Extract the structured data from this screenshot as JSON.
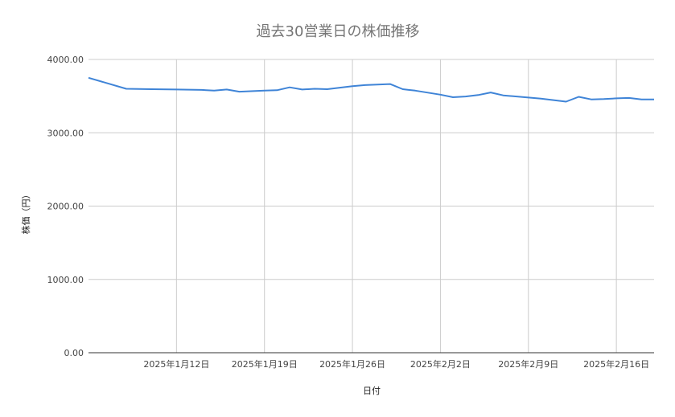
{
  "chart_data": {
    "type": "line",
    "title": "過去30営業日の株価推移",
    "xlabel": "日付",
    "ylabel": "株価（円）",
    "ylim": [
      0,
      4000
    ],
    "yticks": [
      "0.00",
      "1000.00",
      "2000.00",
      "3000.00",
      "4000.00"
    ],
    "xlim": [
      "2025-01-05",
      "2025-02-19"
    ],
    "xticks": [
      {
        "date": "2025-01-12",
        "label": "2025年1月12日"
      },
      {
        "date": "2025-01-19",
        "label": "2025年1月19日"
      },
      {
        "date": "2025-01-26",
        "label": "2025年1月26日"
      },
      {
        "date": "2025-02-02",
        "label": "2025年2月2日"
      },
      {
        "date": "2025-02-09",
        "label": "2025年2月9日"
      },
      {
        "date": "2025-02-16",
        "label": "2025年2月16日"
      }
    ],
    "grid": true,
    "series": [
      {
        "color": "#3f84d7",
        "points": [
          {
            "x": "2025-01-05",
            "y": 3750
          },
          {
            "x": "2025-01-08",
            "y": 3600
          },
          {
            "x": "2025-01-10",
            "y": 3595
          },
          {
            "x": "2025-01-12",
            "y": 3590
          },
          {
            "x": "2025-01-14",
            "y": 3585
          },
          {
            "x": "2025-01-15",
            "y": 3575
          },
          {
            "x": "2025-01-16",
            "y": 3590
          },
          {
            "x": "2025-01-17",
            "y": 3560
          },
          {
            "x": "2025-01-19",
            "y": 3575
          },
          {
            "x": "2025-01-20",
            "y": 3580
          },
          {
            "x": "2025-01-21",
            "y": 3620
          },
          {
            "x": "2025-01-22",
            "y": 3590
          },
          {
            "x": "2025-01-23",
            "y": 3600
          },
          {
            "x": "2025-01-24",
            "y": 3595
          },
          {
            "x": "2025-01-26",
            "y": 3635
          },
          {
            "x": "2025-01-27",
            "y": 3650
          },
          {
            "x": "2025-01-29",
            "y": 3665
          },
          {
            "x": "2025-01-30",
            "y": 3595
          },
          {
            "x": "2025-01-31",
            "y": 3575
          },
          {
            "x": "2025-02-02",
            "y": 3520
          },
          {
            "x": "2025-02-03",
            "y": 3485
          },
          {
            "x": "2025-02-04",
            "y": 3495
          },
          {
            "x": "2025-02-05",
            "y": 3515
          },
          {
            "x": "2025-02-06",
            "y": 3550
          },
          {
            "x": "2025-02-07",
            "y": 3510
          },
          {
            "x": "2025-02-09",
            "y": 3480
          },
          {
            "x": "2025-02-10",
            "y": 3465
          },
          {
            "x": "2025-02-12",
            "y": 3425
          },
          {
            "x": "2025-02-13",
            "y": 3490
          },
          {
            "x": "2025-02-14",
            "y": 3455
          },
          {
            "x": "2025-02-15",
            "y": 3460
          },
          {
            "x": "2025-02-16",
            "y": 3470
          },
          {
            "x": "2025-02-17",
            "y": 3475
          },
          {
            "x": "2025-02-18",
            "y": 3455
          },
          {
            "x": "2025-02-19",
            "y": 3455
          }
        ]
      }
    ]
  }
}
